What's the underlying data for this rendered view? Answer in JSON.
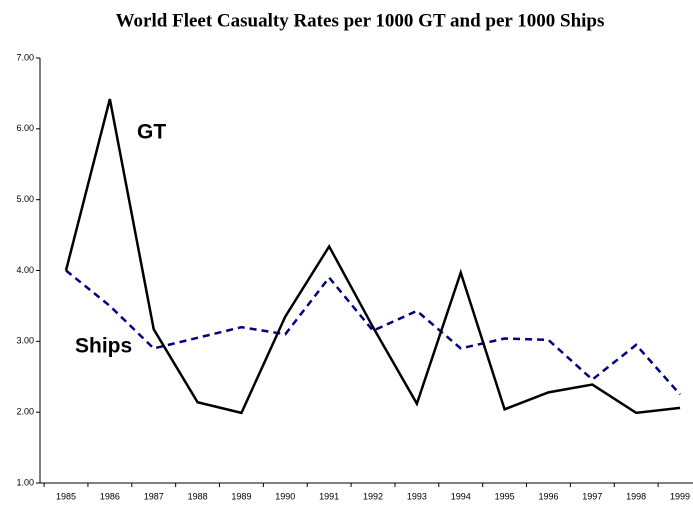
{
  "chart_data": {
    "type": "line",
    "title": "World Fleet Casualty Rates per 1000 GT and per 1000 Ships",
    "categories": [
      "1985",
      "1986",
      "1987",
      "1988",
      "1989",
      "1990",
      "1991",
      "1992",
      "1993",
      "1994",
      "1995",
      "1996",
      "1997",
      "1998",
      "1999"
    ],
    "series": [
      {
        "name": "GT",
        "color": "#000000",
        "dashed": false,
        "values": [
          4.0,
          6.42,
          3.17,
          2.14,
          1.99,
          3.35,
          4.34,
          3.2,
          2.12,
          3.97,
          2.04,
          2.28,
          2.39,
          1.99,
          2.06
        ]
      },
      {
        "name": "Ships",
        "color": "#000080",
        "dashed": true,
        "values": [
          4.0,
          3.5,
          2.9,
          3.05,
          3.2,
          3.1,
          3.9,
          3.15,
          3.43,
          2.9,
          3.04,
          3.02,
          2.46,
          2.95,
          2.25
        ]
      }
    ],
    "ylim": [
      1,
      7
    ],
    "yticks": [
      {
        "value": 1,
        "label": "1.00"
      },
      {
        "value": 2,
        "label": "2.00"
      },
      {
        "value": 3,
        "label": "3.00"
      },
      {
        "value": 4,
        "label": "4.00"
      },
      {
        "value": 5,
        "label": "5.00"
      },
      {
        "value": 6,
        "label": "6.00"
      },
      {
        "value": 7,
        "label": "7.00"
      }
    ],
    "grid": false
  }
}
